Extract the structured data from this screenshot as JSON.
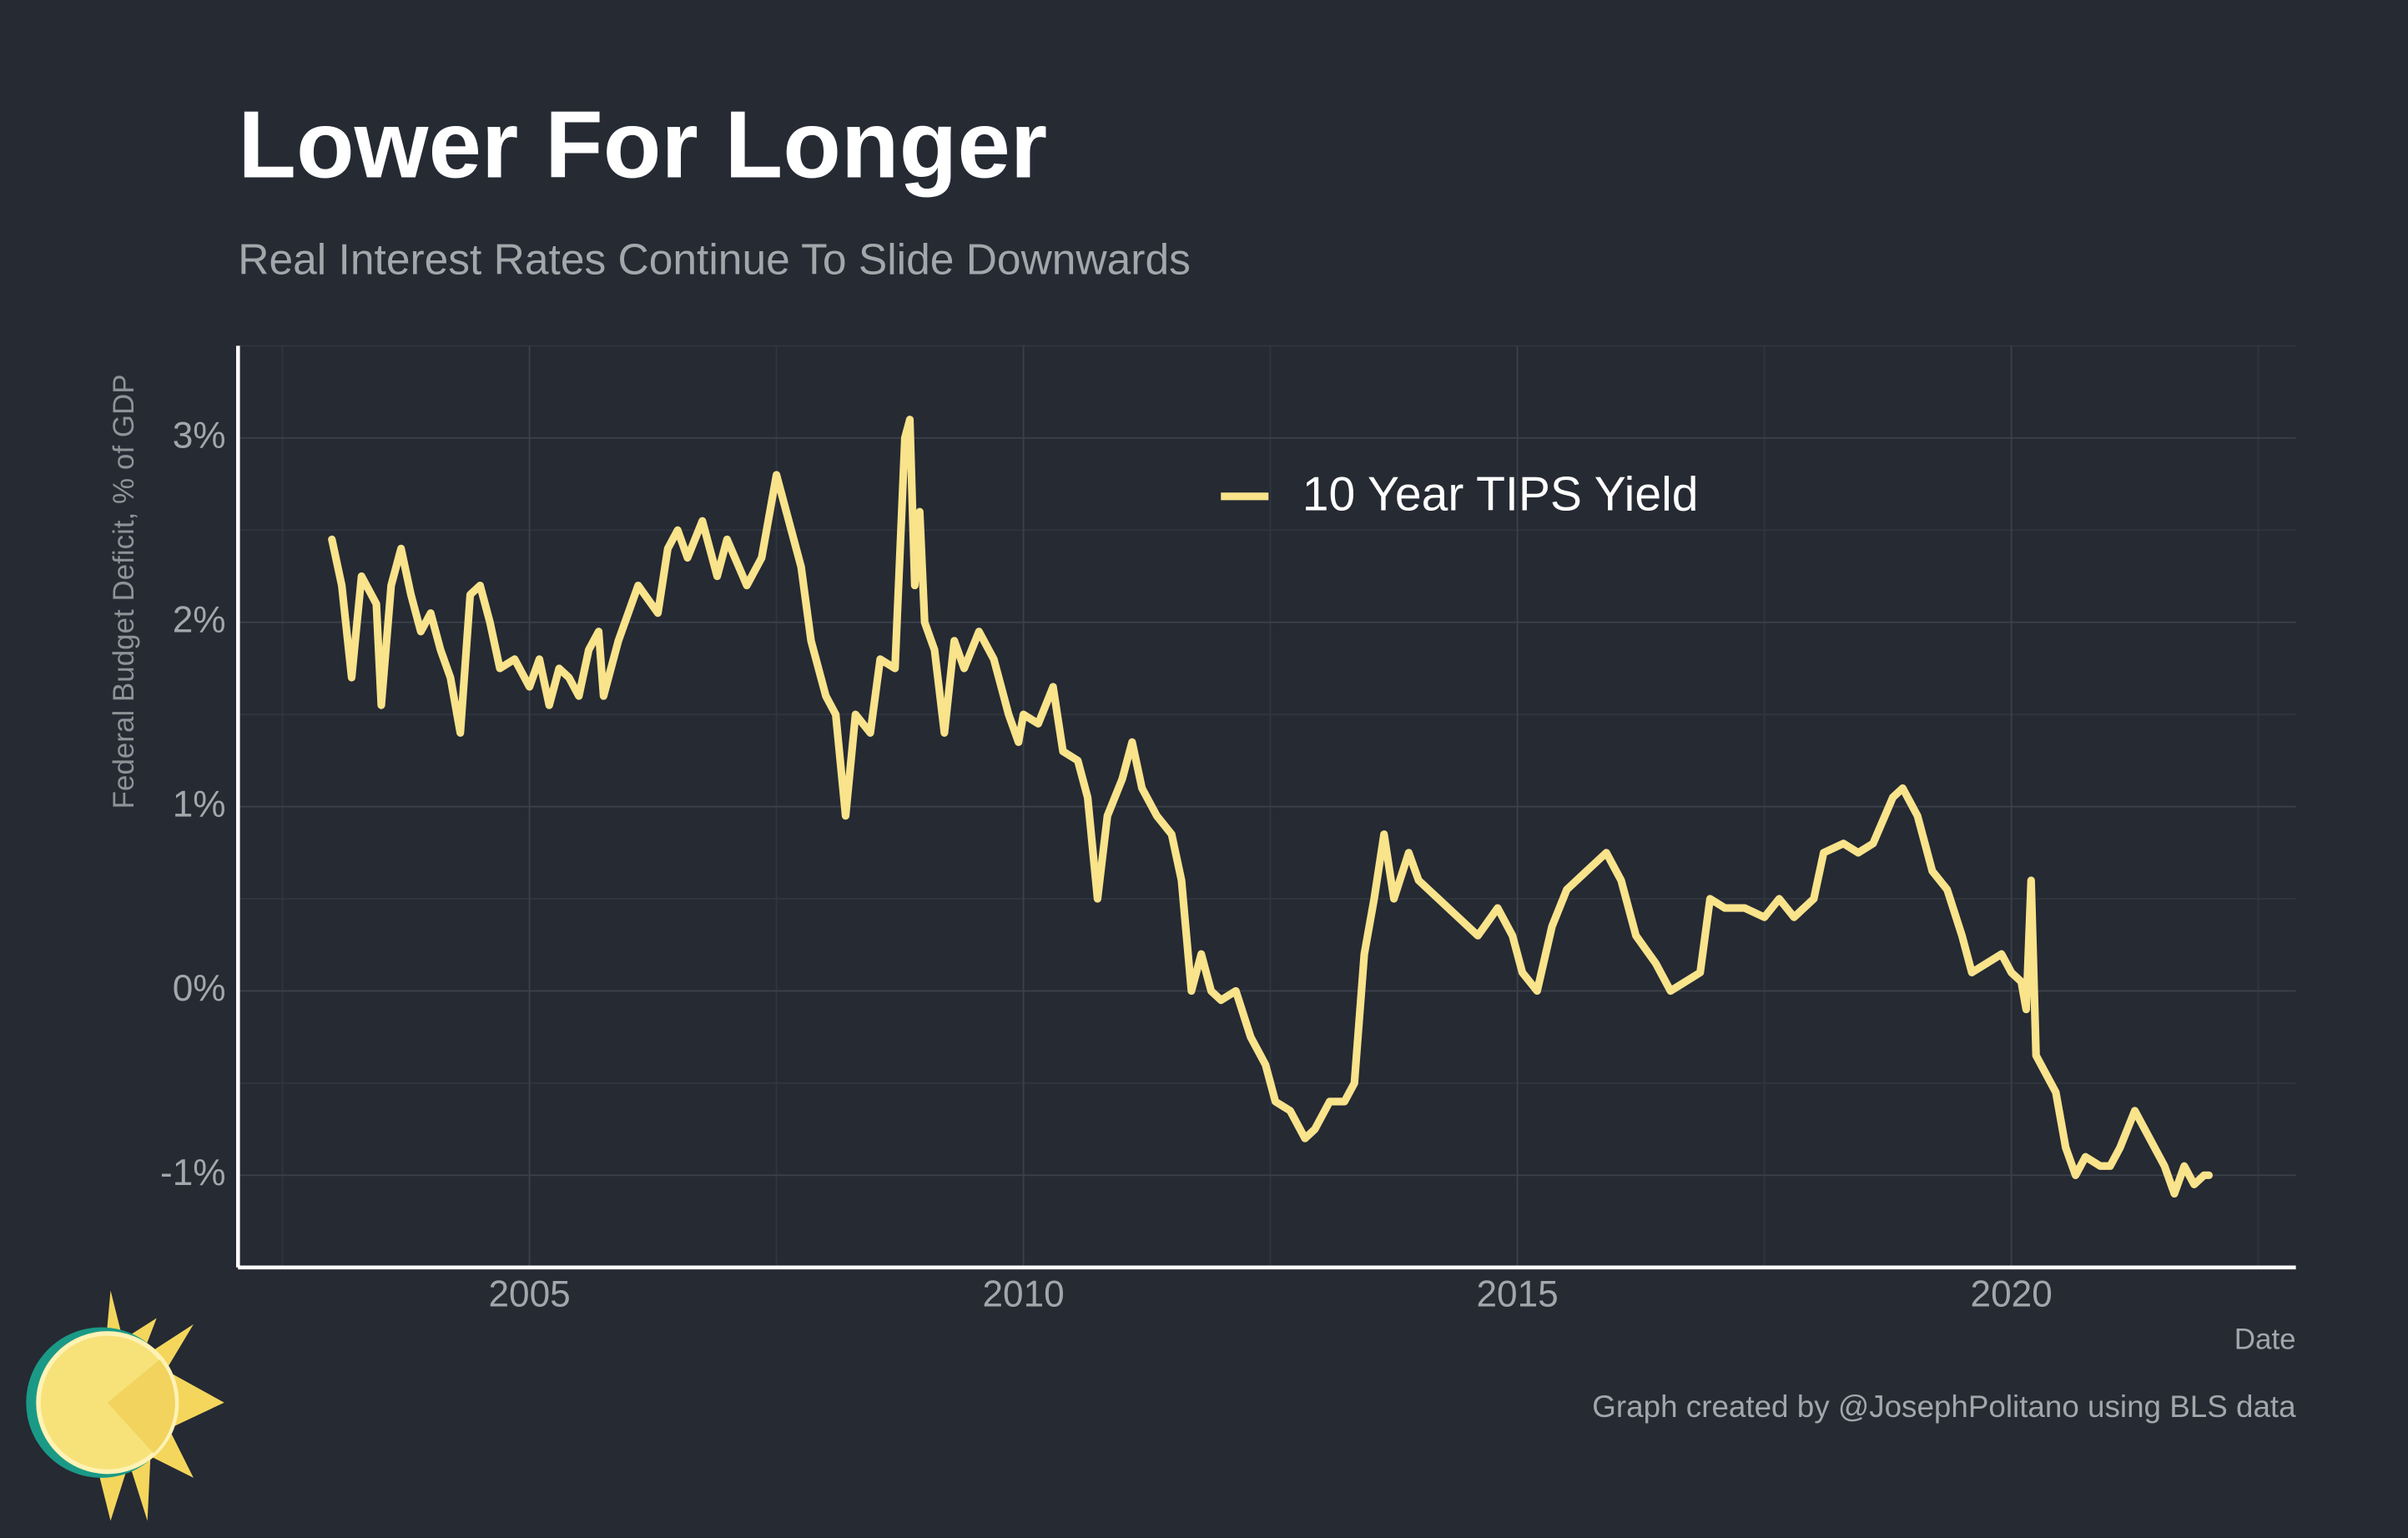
{
  "chart_data": {
    "type": "line",
    "title": "Lower For Longer",
    "subtitle": "Real Interest Rates Continue To Slide Downwards",
    "y_label": "Federal Budget Deficit, % of GDP",
    "x_label": "Date",
    "caption": "Graph created by @JosephPolitano using BLS data",
    "grid": true,
    "xlim": [
      2002.05,
      2022.88
    ],
    "xticks": [
      2005,
      2010,
      2015,
      2020
    ],
    "ylim": [
      -1.5,
      3.5
    ],
    "yticks": [
      {
        "value": -1,
        "label": "-1%"
      },
      {
        "value": 0,
        "label": "0%"
      },
      {
        "value": 1,
        "label": "1%"
      },
      {
        "value": 2,
        "label": "2%"
      },
      {
        "value": 3,
        "label": "3%"
      }
    ],
    "x": [
      2003.0,
      2003.1,
      2003.2,
      2003.3,
      2003.45,
      2003.5,
      2003.6,
      2003.7,
      2003.8,
      2003.9,
      2004.0,
      2004.1,
      2004.2,
      2004.3,
      2004.4,
      2004.5,
      2004.6,
      2004.7,
      2004.85,
      2005.0,
      2005.1,
      2005.2,
      2005.3,
      2005.4,
      2005.5,
      2005.6,
      2005.7,
      2005.75,
      2005.9,
      2006.0,
      2006.1,
      2006.3,
      2006.4,
      2006.5,
      2006.6,
      2006.75,
      2006.9,
      2007.0,
      2007.2,
      2007.35,
      2007.5,
      2007.6,
      2007.75,
      2007.85,
      2008.0,
      2008.1,
      2008.2,
      2008.3,
      2008.45,
      2008.55,
      2008.7,
      2008.8,
      2008.85,
      2008.9,
      2008.95,
      2009.0,
      2009.1,
      2009.2,
      2009.3,
      2009.4,
      2009.55,
      2009.7,
      2009.85,
      2009.95,
      2010.0,
      2010.15,
      2010.3,
      2010.4,
      2010.55,
      2010.65,
      2010.75,
      2010.85,
      2011.0,
      2011.1,
      2011.2,
      2011.35,
      2011.5,
      2011.6,
      2011.7,
      2011.8,
      2011.9,
      2012.0,
      2012.15,
      2012.3,
      2012.45,
      2012.55,
      2012.7,
      2012.85,
      2012.95,
      2013.1,
      2013.25,
      2013.35,
      2013.45,
      2013.55,
      2013.65,
      2013.75,
      2013.9,
      2014.0,
      2014.2,
      2014.4,
      2014.6,
      2014.8,
      2014.95,
      2015.05,
      2015.2,
      2015.35,
      2015.5,
      2015.7,
      2015.9,
      2016.05,
      2016.2,
      2016.4,
      2016.55,
      2016.7,
      2016.85,
      2016.95,
      2017.1,
      2017.3,
      2017.5,
      2017.65,
      2017.8,
      2018.0,
      2018.1,
      2018.3,
      2018.45,
      2018.6,
      2018.8,
      2018.9,
      2019.05,
      2019.2,
      2019.35,
      2019.5,
      2019.6,
      2019.75,
      2019.9,
      2020.0,
      2020.1,
      2020.15,
      2020.2,
      2020.25,
      2020.35,
      2020.45,
      2020.55,
      2020.65,
      2020.75,
      2020.9,
      2021.0,
      2021.1,
      2021.25,
      2021.4,
      2021.55,
      2021.65,
      2021.75,
      2021.85,
      2021.95,
      2022.0
    ],
    "series": [
      {
        "name": "10 Year TIPS Yield",
        "color": "#f9e38b",
        "values": [
          2.45,
          2.2,
          1.7,
          2.25,
          2.1,
          1.55,
          2.2,
          2.4,
          2.15,
          1.95,
          2.05,
          1.85,
          1.7,
          1.4,
          2.15,
          2.2,
          2.0,
          1.75,
          1.8,
          1.65,
          1.8,
          1.55,
          1.75,
          1.7,
          1.6,
          1.85,
          1.95,
          1.6,
          1.9,
          2.05,
          2.2,
          2.05,
          2.4,
          2.5,
          2.35,
          2.55,
          2.25,
          2.45,
          2.2,
          2.35,
          2.8,
          2.6,
          2.3,
          1.9,
          1.6,
          1.5,
          0.95,
          1.5,
          1.4,
          1.8,
          1.75,
          3.0,
          3.1,
          2.2,
          2.6,
          2.0,
          1.85,
          1.4,
          1.9,
          1.75,
          1.95,
          1.8,
          1.5,
          1.35,
          1.5,
          1.45,
          1.65,
          1.3,
          1.25,
          1.05,
          0.5,
          0.95,
          1.15,
          1.35,
          1.1,
          0.95,
          0.85,
          0.6,
          0.0,
          0.2,
          0.0,
          -0.05,
          0.0,
          -0.25,
          -0.4,
          -0.6,
          -0.65,
          -0.8,
          -0.75,
          -0.6,
          -0.6,
          -0.5,
          0.2,
          0.5,
          0.85,
          0.5,
          0.75,
          0.6,
          0.5,
          0.4,
          0.3,
          0.45,
          0.3,
          0.1,
          0.0,
          0.35,
          0.55,
          0.65,
          0.75,
          0.6,
          0.3,
          0.15,
          0.0,
          0.05,
          0.1,
          0.5,
          0.45,
          0.45,
          0.4,
          0.5,
          0.4,
          0.5,
          0.75,
          0.8,
          0.75,
          0.8,
          1.05,
          1.1,
          0.95,
          0.65,
          0.55,
          0.3,
          0.1,
          0.15,
          0.2,
          0.1,
          0.05,
          -0.1,
          0.6,
          -0.35,
          -0.45,
          -0.55,
          -0.85,
          -1.0,
          -0.9,
          -0.95,
          -0.95,
          -0.85,
          -0.65,
          -0.8,
          -0.95,
          -1.1,
          -0.95,
          -1.05,
          -1.0,
          -1.0
        ]
      }
    ]
  }
}
